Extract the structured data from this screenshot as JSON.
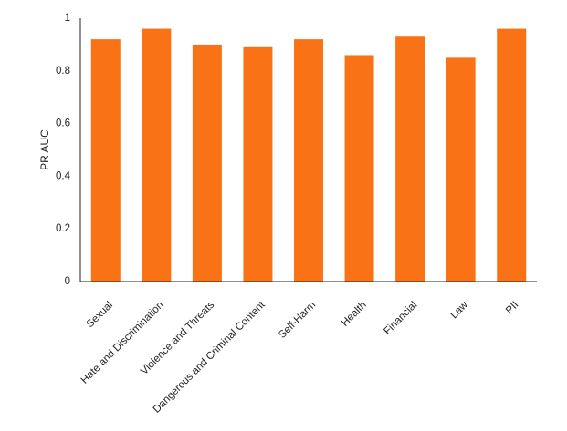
{
  "colors": {
    "bar": "#f97316",
    "axis": "#222222",
    "text": "#222222"
  },
  "chart_data": {
    "type": "bar",
    "title": "",
    "xlabel": "",
    "ylabel": "PR AUC",
    "ylim": [
      0,
      1
    ],
    "yticks": [
      0,
      0.2,
      0.4,
      0.6,
      0.8,
      1
    ],
    "ytick_labels": [
      "0",
      "0.2",
      "0.4",
      "0.6",
      "0.8",
      "1"
    ],
    "grid": false,
    "legend": "none",
    "categories": [
      "Sexual",
      "Hate and Discrimination",
      "Violence and Threats",
      "Dangerous and Criminal Content",
      "Self-Harm",
      "Health",
      "Financial",
      "Law",
      "PII"
    ],
    "values": [
      0.92,
      0.96,
      0.9,
      0.89,
      0.92,
      0.86,
      0.93,
      0.85,
      0.96
    ]
  }
}
